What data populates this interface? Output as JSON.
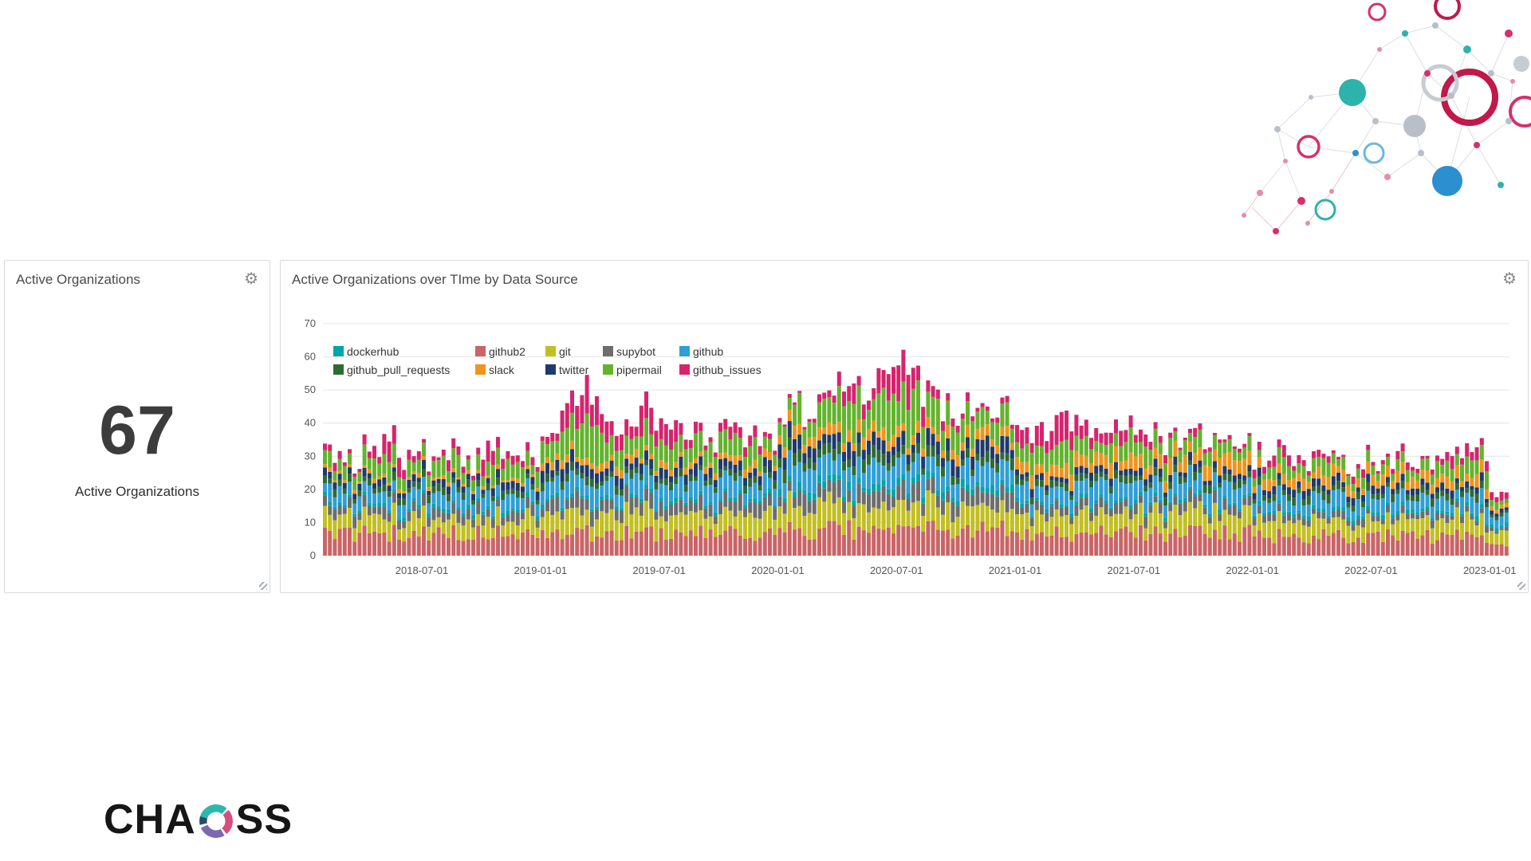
{
  "page": {
    "background_color": "#ffffff"
  },
  "icons": {
    "settings_gear": "⚙"
  },
  "metric_panel": {
    "title": "Active Organizations",
    "value": "67",
    "value_label": "Active Organizations"
  },
  "chart_panel": {
    "title": "Active Organizations over TIme by Data Source"
  },
  "logo": {
    "text_before": "CHA",
    "text_after": "SS",
    "name": "CHAOSS"
  },
  "chart_data": {
    "type": "bar",
    "stacked": true,
    "title": "Active Organizations over TIme by Data Source",
    "ylabel": "",
    "xlabel": "",
    "ylim": [
      0,
      70
    ],
    "y_ticks": [
      0,
      10,
      20,
      30,
      40,
      50,
      60,
      70
    ],
    "grid": true,
    "legend_position": "inside-top-left",
    "x_unit": "month",
    "x_tick_labels": [
      "2018-07-01",
      "2019-01-01",
      "2019-07-01",
      "2020-01-01",
      "2020-07-01",
      "2021-01-01",
      "2021-07-01",
      "2022-01-01",
      "2022-07-01",
      "2023-01-01"
    ],
    "months": [
      "2018-02",
      "2018-03",
      "2018-04",
      "2018-05",
      "2018-06",
      "2018-07",
      "2018-08",
      "2018-09",
      "2018-10",
      "2018-11",
      "2018-12",
      "2019-01",
      "2019-02",
      "2019-03",
      "2019-04",
      "2019-05",
      "2019-06",
      "2019-07",
      "2019-08",
      "2019-09",
      "2019-10",
      "2019-11",
      "2019-12",
      "2020-01",
      "2020-02",
      "2020-03",
      "2020-04",
      "2020-05",
      "2020-06",
      "2020-07",
      "2020-08",
      "2020-09",
      "2020-10",
      "2020-11",
      "2020-12",
      "2021-01",
      "2021-02",
      "2021-03",
      "2021-04",
      "2021-05",
      "2021-06",
      "2021-07",
      "2021-08",
      "2021-09",
      "2021-10",
      "2021-11",
      "2021-12",
      "2022-01",
      "2022-02",
      "2022-03",
      "2022-04",
      "2022-05",
      "2022-06",
      "2022-07",
      "2022-08",
      "2022-09",
      "2022-10",
      "2022-11",
      "2022-12",
      "2023-01"
    ],
    "legend": [
      {
        "label": "dockerhub",
        "color": "#00a5a8"
      },
      {
        "label": "github2",
        "color": "#c96567"
      },
      {
        "label": "git",
        "color": "#c2bf22"
      },
      {
        "label": "supybot",
        "color": "#6d6d6d"
      },
      {
        "label": "github",
        "color": "#2f9fd6"
      },
      {
        "label": "github_pull_requests",
        "color": "#2e6b34"
      },
      {
        "label": "slack",
        "color": "#ef941e"
      },
      {
        "label": "twitter",
        "color": "#1f3a6e"
      },
      {
        "label": "pipermail",
        "color": "#64b32e"
      },
      {
        "label": "github_issues",
        "color": "#d6246e"
      }
    ],
    "series": [
      {
        "name": "github2",
        "color": "#c96567",
        "values": [
          7,
          7,
          7,
          7,
          7,
          7,
          7,
          7,
          7,
          7,
          6,
          7,
          7,
          7,
          7,
          7,
          7,
          7,
          7,
          7,
          7,
          7,
          7,
          8,
          8,
          8,
          8,
          8,
          8,
          8,
          8,
          8,
          8,
          8,
          8,
          7,
          7,
          7,
          7,
          7,
          7,
          7,
          7,
          7,
          7,
          7,
          7,
          6,
          6,
          6,
          6,
          6,
          6,
          6,
          6,
          6,
          6,
          6,
          6,
          4
        ]
      },
      {
        "name": "git",
        "color": "#c2bf22",
        "values": [
          5,
          5,
          5,
          5,
          5,
          5,
          5,
          5,
          5,
          5,
          5,
          6,
          6,
          6,
          6,
          6,
          6,
          6,
          6,
          6,
          6,
          6,
          6,
          7,
          7,
          7,
          7,
          7,
          7,
          7,
          7,
          7,
          7,
          7,
          7,
          6,
          6,
          6,
          6,
          6,
          6,
          6,
          6,
          6,
          6,
          6,
          6,
          5,
          5,
          5,
          5,
          5,
          5,
          5,
          5,
          5,
          5,
          5,
          5,
          4
        ]
      },
      {
        "name": "supybot",
        "color": "#6d6d6d",
        "values": [
          3,
          3,
          3,
          3,
          3,
          3,
          3,
          3,
          3,
          3,
          3,
          4,
          4,
          4,
          4,
          4,
          4,
          4,
          4,
          4,
          4,
          4,
          4,
          5,
          5,
          5,
          5,
          5,
          5,
          5,
          5,
          5,
          5,
          5,
          5,
          3,
          3,
          3,
          3,
          3,
          3,
          3,
          3,
          3,
          3,
          3,
          3,
          2,
          2,
          2,
          2,
          2,
          2,
          2,
          2,
          2,
          2,
          2,
          2,
          1
        ]
      },
      {
        "name": "dockerhub",
        "color": "#00a5a8",
        "values": [
          1,
          1,
          1,
          1,
          1,
          1,
          1,
          1,
          1,
          1,
          1,
          1,
          1,
          1,
          1,
          1,
          1,
          1,
          1,
          1,
          1,
          1,
          1,
          2,
          2,
          2,
          2,
          2,
          2,
          2,
          2,
          2,
          2,
          2,
          2,
          1,
          1,
          1,
          1,
          1,
          1,
          1,
          1,
          1,
          1,
          1,
          1,
          1,
          1,
          1,
          1,
          1,
          1,
          1,
          1,
          1,
          1,
          1,
          1,
          1
        ]
      },
      {
        "name": "github",
        "color": "#2f9fd6",
        "values": [
          4,
          4,
          4,
          4,
          4,
          4,
          4,
          4,
          4,
          4,
          4,
          5,
          5,
          5,
          5,
          5,
          5,
          5,
          5,
          5,
          5,
          5,
          5,
          6,
          6,
          6,
          6,
          6,
          6,
          6,
          6,
          6,
          6,
          6,
          6,
          5,
          5,
          5,
          5,
          5,
          5,
          5,
          5,
          5,
          5,
          5,
          5,
          4,
          4,
          4,
          4,
          4,
          4,
          4,
          4,
          4,
          4,
          4,
          4,
          3
        ]
      },
      {
        "name": "github_pull_requests",
        "color": "#2e6b34",
        "values": [
          2,
          2,
          2,
          2,
          2,
          2,
          2,
          2,
          2,
          2,
          2,
          2,
          2,
          2,
          2,
          2,
          2,
          2,
          2,
          2,
          2,
          2,
          2,
          3,
          3,
          3,
          3,
          3,
          3,
          3,
          3,
          3,
          3,
          3,
          3,
          2,
          2,
          2,
          2,
          2,
          2,
          2,
          2,
          2,
          2,
          2,
          2,
          2,
          2,
          2,
          2,
          2,
          2,
          2,
          2,
          2,
          2,
          2,
          2,
          1
        ]
      },
      {
        "name": "twitter",
        "color": "#1f3a6e",
        "values": [
          2,
          2,
          2,
          2,
          2,
          2,
          2,
          2,
          2,
          2,
          2,
          3,
          3,
          3,
          3,
          3,
          3,
          3,
          3,
          3,
          3,
          3,
          3,
          4,
          4,
          4,
          4,
          4,
          4,
          4,
          4,
          4,
          4,
          4,
          4,
          2,
          2,
          2,
          2,
          2,
          2,
          2,
          2,
          2,
          2,
          2,
          2,
          2,
          2,
          2,
          2,
          2,
          2,
          2,
          2,
          2,
          2,
          2,
          2,
          1
        ]
      },
      {
        "name": "slack",
        "color": "#ef941e",
        "values": [
          1,
          1,
          1,
          1,
          1,
          1,
          1,
          1,
          1,
          1,
          1,
          2,
          2,
          2,
          2,
          2,
          2,
          2,
          2,
          2,
          2,
          2,
          2,
          3,
          3,
          3,
          3,
          3,
          3,
          3,
          3,
          3,
          3,
          3,
          3,
          4,
          4,
          4,
          4,
          4,
          4,
          4,
          4,
          4,
          4,
          4,
          4,
          3,
          3,
          3,
          3,
          3,
          3,
          3,
          3,
          3,
          3,
          3,
          3,
          1
        ]
      },
      {
        "name": "pipermail",
        "color": "#64b32e",
        "values": [
          4,
          4,
          5,
          5,
          4,
          4,
          5,
          4,
          5,
          5,
          4,
          6,
          8,
          10,
          7,
          6,
          8,
          7,
          6,
          5,
          7,
          6,
          5,
          6,
          7,
          8,
          9,
          8,
          10,
          11,
          9,
          8,
          7,
          6,
          7,
          5,
          6,
          7,
          5,
          5,
          6,
          5,
          5,
          4,
          5,
          4,
          4,
          3,
          4,
          3,
          4,
          3,
          3,
          3,
          3,
          3,
          4,
          4,
          4,
          2
        ]
      },
      {
        "name": "github_issues",
        "color": "#d6246e",
        "values": [
          2,
          1,
          3,
          5,
          3,
          1,
          3,
          2,
          5,
          3,
          2,
          2,
          7,
          10,
          5,
          4,
          7,
          5,
          3,
          2,
          4,
          3,
          2,
          1,
          1,
          2,
          5,
          4,
          7,
          9,
          5,
          3,
          2,
          1,
          2,
          5,
          6,
          8,
          5,
          3,
          4,
          3,
          2,
          1,
          2,
          1,
          1,
          2,
          3,
          2,
          2,
          1,
          2,
          1,
          2,
          1,
          2,
          3,
          3,
          2
        ]
      }
    ]
  }
}
